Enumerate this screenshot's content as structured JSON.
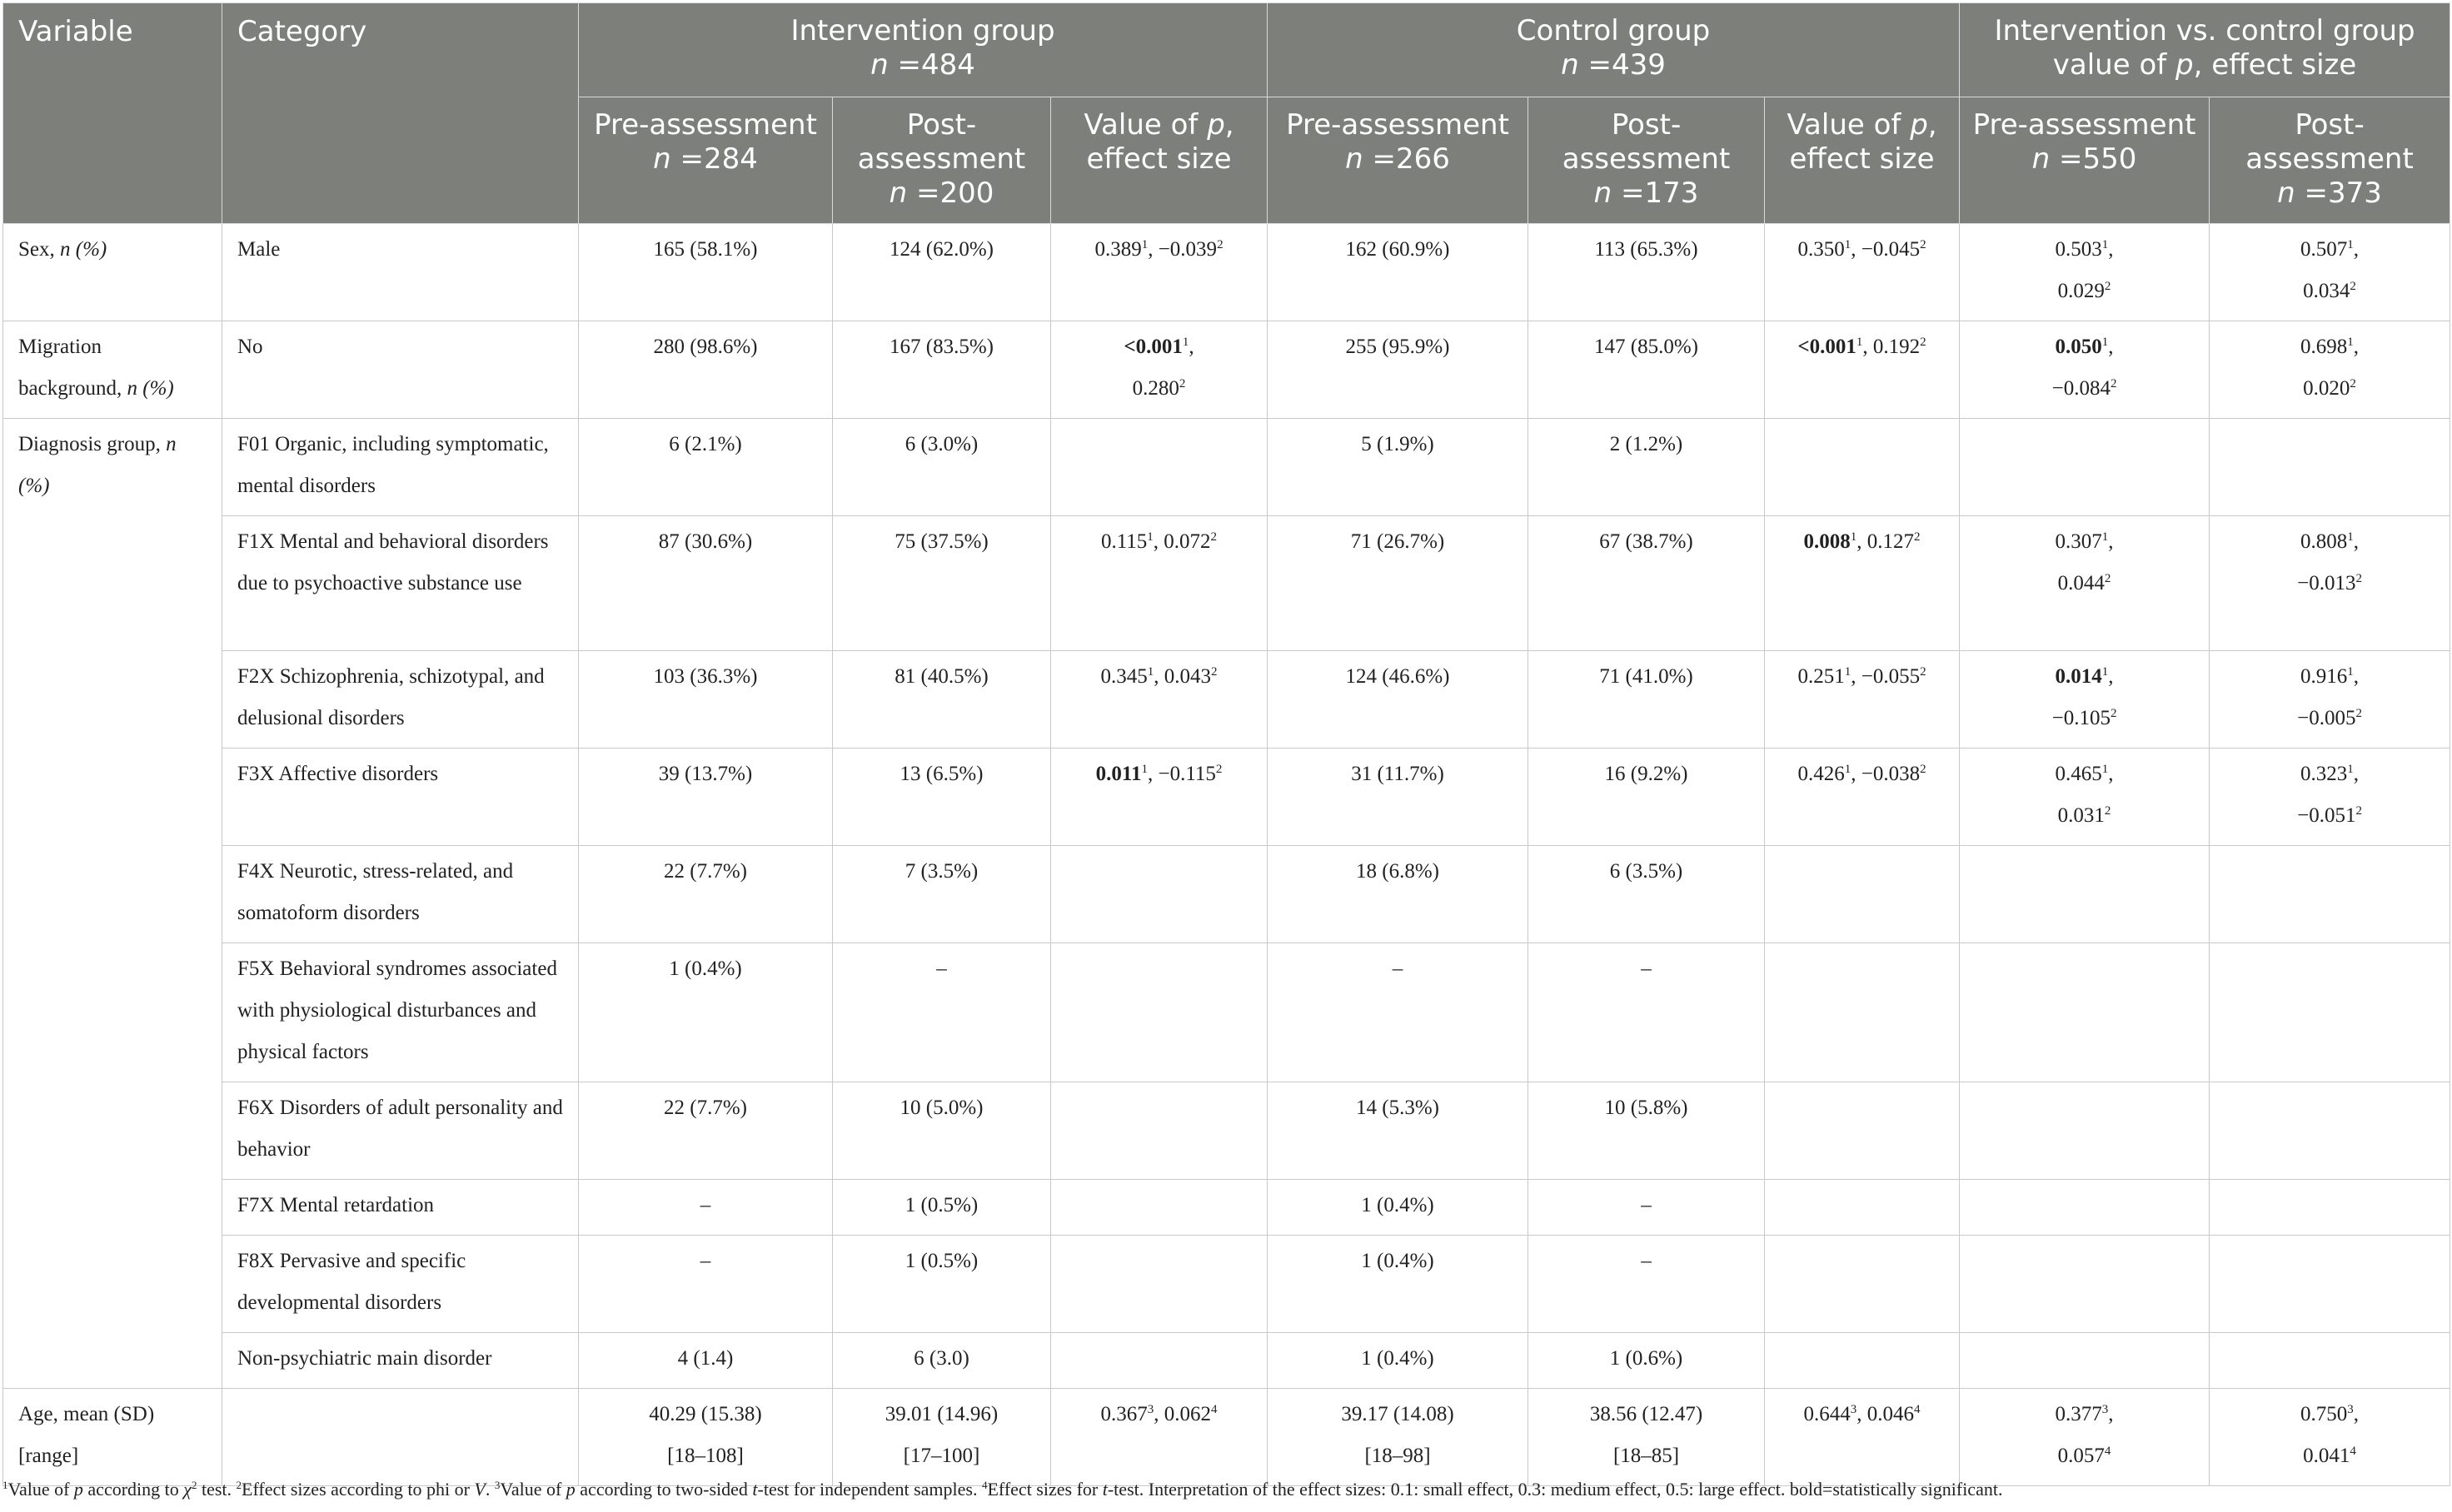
{
  "headers": {
    "variable": "Variable",
    "category": "Category",
    "intervention_group": "Intervention group",
    "intervention_n": "n =484",
    "control_group": "Control group",
    "control_n": "n =439",
    "comparison": "Intervention vs. control group",
    "comparison_sub": "value of p, effect size",
    "pre": "Pre-assessment",
    "post": "Post-assessment",
    "pval": "Value of p, effect size",
    "int_pre_n": "n =284",
    "int_post_n": "n =200",
    "ctl_pre_n": "n =266",
    "ctl_post_n": "n =173",
    "cmp_pre_n": "n =550",
    "cmp_post_n": "n =373"
  },
  "rows": [
    {
      "variable": "Sex, n (%)",
      "category": "Male",
      "int_pre": "165 (58.1%)",
      "int_post": "124 (62.0%)",
      "int_p": "0.389¹, −0.039²",
      "ctl_pre": "162 (60.9%)",
      "ctl_post": "113 (65.3%)",
      "ctl_p": "0.350¹, −0.045²",
      "cmp_pre": "0.503¹, 0.029²",
      "cmp_post": "0.507¹, 0.034²"
    },
    {
      "variable": "Migration background, n (%)",
      "category": "No",
      "int_pre": "280 (98.6%)",
      "int_post": "167 (83.5%)",
      "int_p": "<0.001¹, 0.280²",
      "ctl_pre": "255 (95.9%)",
      "ctl_post": "147 (85.0%)",
      "ctl_p": "<0.001¹, 0.192²",
      "cmp_pre": "0.050¹, −0.084²",
      "cmp_post": "0.698¹, 0.020²"
    },
    {
      "variable": "Diagnosis group, n (%)",
      "category": "F01 Organic, including symptomatic, mental disorders",
      "int_pre": "6 (2.1%)",
      "int_post": "6 (3.0%)",
      "int_p": "",
      "ctl_pre": "5 (1.9%)",
      "ctl_post": "2 (1.2%)",
      "ctl_p": "",
      "cmp_pre": "",
      "cmp_post": ""
    },
    {
      "variable": "",
      "category": "F1X Mental and behavioral disorders due to psychoactive substance use",
      "int_pre": "87 (30.6%)",
      "int_post": "75 (37.5%)",
      "int_p": "0.115¹, 0.072²",
      "ctl_pre": "71 (26.7%)",
      "ctl_post": "67 (38.7%)",
      "ctl_p": "0.008¹, 0.127²",
      "cmp_pre": "0.307¹, 0.044²",
      "cmp_post": "0.808¹, −0.013²"
    },
    {
      "variable": "",
      "category": "F2X Schizophrenia, schizotypal, and delusional disorders",
      "int_pre": "103 (36.3%)",
      "int_post": "81 (40.5%)",
      "int_p": "0.345¹, 0.043²",
      "ctl_pre": "124 (46.6%)",
      "ctl_post": "71 (41.0%)",
      "ctl_p": "0.251¹, −0.055²",
      "cmp_pre": "0.014¹, −0.105²",
      "cmp_post": "0.916¹, −0.005²"
    },
    {
      "variable": "",
      "category": "F3X Affective disorders",
      "int_pre": "39 (13.7%)",
      "int_post": "13 (6.5%)",
      "int_p": "0.011¹, −0.115²",
      "ctl_pre": "31 (11.7%)",
      "ctl_post": "16 (9.2%)",
      "ctl_p": "0.426¹, −0.038²",
      "cmp_pre": "0.465¹, 0.031²",
      "cmp_post": "0.323¹, −0.051²"
    },
    {
      "variable": "",
      "category": "F4X Neurotic, stress-related, and somatoform disorders",
      "int_pre": "22 (7.7%)",
      "int_post": "7 (3.5%)",
      "int_p": "",
      "ctl_pre": "18 (6.8%)",
      "ctl_post": "6 (3.5%)",
      "ctl_p": "",
      "cmp_pre": "",
      "cmp_post": ""
    },
    {
      "variable": "",
      "category": "F5X Behavioral syndromes associated with physiological disturbances and physical factors",
      "int_pre": "1 (0.4%)",
      "int_post": "–",
      "int_p": "",
      "ctl_pre": "–",
      "ctl_post": "–",
      "ctl_p": "",
      "cmp_pre": "",
      "cmp_post": ""
    },
    {
      "variable": "",
      "category": "F6X Disorders of adult personality and behavior",
      "int_pre": "22 (7.7%)",
      "int_post": "10 (5.0%)",
      "int_p": "",
      "ctl_pre": "14 (5.3%)",
      "ctl_post": "10 (5.8%)",
      "ctl_p": "",
      "cmp_pre": "",
      "cmp_post": ""
    },
    {
      "variable": "",
      "category": "F7X Mental retardation",
      "int_pre": "–",
      "int_post": "1 (0.5%)",
      "int_p": "",
      "ctl_pre": "1 (0.4%)",
      "ctl_post": "–",
      "ctl_p": "",
      "cmp_pre": "",
      "cmp_post": ""
    },
    {
      "variable": "",
      "category": "F8X Pervasive and specific developmental disorders",
      "int_pre": "–",
      "int_post": "1 (0.5%)",
      "int_p": "",
      "ctl_pre": "1 (0.4%)",
      "ctl_post": "–",
      "ctl_p": "",
      "cmp_pre": "",
      "cmp_post": ""
    },
    {
      "variable": "",
      "category": "Non-psychiatric main disorder",
      "int_pre": "4 (1.4)",
      "int_post": "6 (3.0)",
      "int_p": "",
      "ctl_pre": "1 (0.4%)",
      "ctl_post": "1 (0.6%)",
      "ctl_p": "",
      "cmp_pre": "",
      "cmp_post": ""
    },
    {
      "variable": "Age, mean (SD) [range]",
      "category": "",
      "int_pre": "40.29 (15.38) [18–108]",
      "int_post": "39.01 (14.96) [17–100]",
      "int_p": "0.367³, 0.062⁴",
      "ctl_pre": "39.17 (14.08) [18–98]",
      "ctl_post": "38.56 (12.47) [18–85]",
      "ctl_p": "0.644³, 0.046⁴",
      "cmp_pre": "0.377³, 0.057⁴",
      "cmp_post": "0.750³, 0.041⁴"
    }
  ],
  "footnote": "¹Value of p according to χ² test. ²Effect sizes according to phi or V. ³Value of p according to two-sided t-test for independent samples. ⁴Effect sizes for t-test. Interpretation of the effect sizes: 0.1: small effect, 0.3: medium effect, 0.5: large effect. bold=statistically significant."
}
